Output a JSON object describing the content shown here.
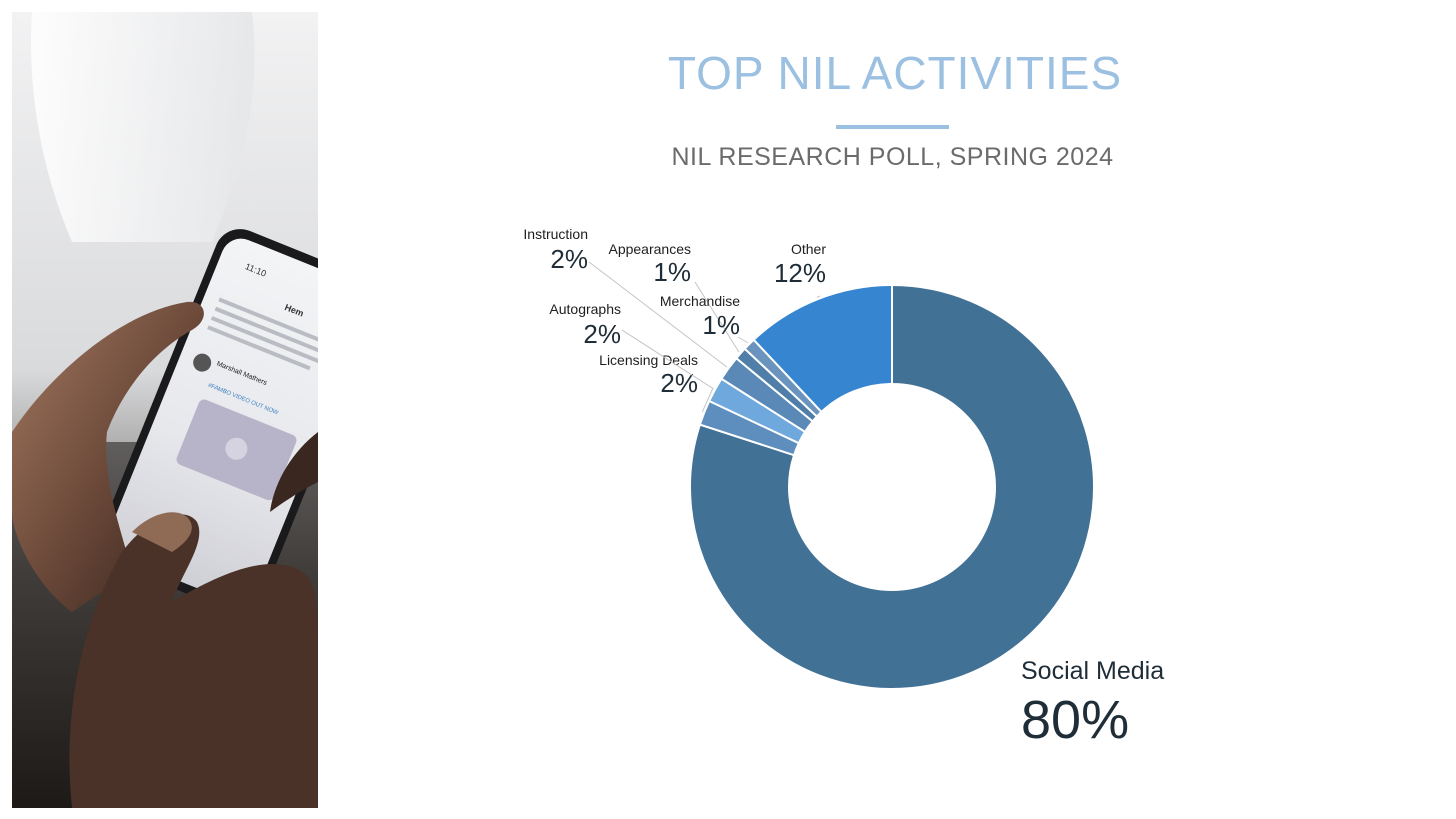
{
  "header": {
    "title": "TOP NIL ACTIVITIES",
    "subtitle": "NIL RESEARCH POLL, SPRING 2024"
  },
  "photo": {
    "phone_screen": {
      "time": "11:10",
      "header": "Hem",
      "post_user": "Marshall Mathers",
      "post_text": "#FAMBO VIDEO OUT NOW"
    }
  },
  "colors": {
    "social_media": "#427196",
    "other": "#3585d0",
    "small_slices": [
      "#5d8ebd",
      "#6fa8dc",
      "#5a89b8",
      "#4f7fa9",
      "#6a94bd"
    ]
  },
  "chart_data": {
    "type": "pie",
    "style": "donut",
    "title": "TOP NIL ACTIVITIES",
    "subtitle": "NIL RESEARCH POLL, SPRING 2024",
    "slices": [
      {
        "label": "Social Media",
        "value": 80,
        "display": "80%"
      },
      {
        "label": "Licensing Deals",
        "value": 2,
        "display": "2%"
      },
      {
        "label": "Autographs",
        "value": 2,
        "display": "2%"
      },
      {
        "label": "Instruction",
        "value": 2,
        "display": "2%"
      },
      {
        "label": "Appearances",
        "value": 1,
        "display": "1%"
      },
      {
        "label": "Merchandise",
        "value": 1,
        "display": "1%"
      },
      {
        "label": "Other",
        "value": 12,
        "display": "12%"
      }
    ]
  }
}
